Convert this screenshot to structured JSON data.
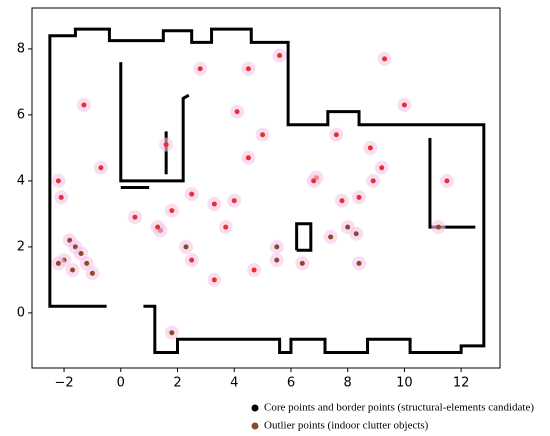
{
  "chart_data": {
    "type": "scatter",
    "xlim": [
      -3.13,
      13.37
    ],
    "ylim": [
      -1.67,
      9.24
    ],
    "xticks": [
      {
        "value": -2,
        "label": "−2"
      },
      0,
      2,
      4,
      6,
      8,
      10,
      12
    ],
    "yticks": [
      0,
      2,
      4,
      6,
      8
    ],
    "series": [
      {
        "name": "Core points and border points (structural-elements candidate)",
        "type": "line",
        "color": "#000000",
        "x": [
          -0.5,
          -2.5,
          -2.5,
          -1.6,
          -1.6,
          -0.4,
          -0.4,
          1.5,
          1.5,
          2.5,
          2.5,
          3.2,
          3.2,
          4.6,
          4.6,
          5.9,
          5.9,
          7.3,
          7.3,
          8.4,
          8.4,
          12.8,
          12.8,
          12.0,
          12.0,
          10.2,
          10.2,
          8.7,
          8.7,
          7.2,
          7.2,
          6.0,
          6.0,
          5.6,
          5.6,
          2.0,
          2.0,
          1.2,
          1.2,
          0.8,
          null,
          0.0,
          0.0,
          2.2,
          2.2,
          2.4,
          null,
          1.6,
          1.6,
          null,
          0.0,
          1.0,
          null,
          6.2,
          6.7,
          6.7,
          6.2,
          6.2,
          null,
          10.9,
          10.9,
          12.5
        ],
        "y": [
          0.2,
          0.2,
          8.4,
          8.4,
          8.6,
          8.6,
          8.25,
          8.25,
          8.55,
          8.55,
          8.2,
          8.2,
          8.6,
          8.6,
          8.2,
          8.2,
          5.7,
          5.7,
          6.1,
          6.1,
          5.7,
          5.7,
          -1.0,
          -1.0,
          -1.2,
          -1.2,
          -0.8,
          -0.8,
          -1.2,
          -1.2,
          -0.8,
          -0.8,
          -1.2,
          -1.2,
          -0.8,
          -0.8,
          -1.2,
          -1.2,
          0.2,
          0.2,
          null,
          7.6,
          4.0,
          4.0,
          6.5,
          6.6,
          null,
          5.5,
          4.2,
          null,
          3.8,
          3.8,
          null,
          1.9,
          1.9,
          2.7,
          2.7,
          1.9,
          null,
          5.3,
          2.6,
          2.6
        ]
      },
      {
        "name": "Outlier points (indoor clutter objects)",
        "type": "scatter",
        "color": "#8b4a2b",
        "x": [
          -1.8,
          -1.6,
          -1.4,
          -1.2,
          -1.0,
          -2.0,
          -1.7,
          -2.2,
          1.4,
          2.3,
          5.5,
          5.5,
          7.4,
          8.0,
          8.3,
          8.4,
          11.2,
          1.8,
          6.4,
          -2.2,
          -2.1,
          -0.7,
          -1.3,
          0.5,
          1.3,
          1.8,
          2.5,
          3.3,
          4.0,
          4.1,
          3.7,
          2.5,
          4.5,
          5.0,
          5.6,
          6.9,
          7.8,
          7.6,
          9.2,
          8.9,
          10.0,
          9.3,
          8.8,
          11.5,
          2.8,
          4.5,
          1.6,
          6.8,
          8.4,
          4.7,
          3.3
        ],
        "y": [
          2.2,
          2.0,
          1.8,
          1.5,
          1.2,
          1.6,
          1.3,
          1.5,
          2.5,
          2.0,
          2.0,
          1.6,
          2.3,
          2.6,
          2.4,
          1.5,
          2.6,
          -0.6,
          1.5,
          4.0,
          3.5,
          4.4,
          6.3,
          2.9,
          2.6,
          3.1,
          3.6,
          3.3,
          3.4,
          6.1,
          2.6,
          1.6,
          4.7,
          5.4,
          7.8,
          4.1,
          3.4,
          5.4,
          4.4,
          4.0,
          6.3,
          7.7,
          5.0,
          4.0,
          7.4,
          7.4,
          5.1,
          4.0,
          3.5,
          1.3,
          1.0
        ],
        "colors": [
          "#8b4a2b",
          "#8b4a2b",
          "#8b4a2b",
          "#8b4a2b",
          "#8b4a2b",
          "#8b4a2b",
          "#8b4a2b",
          "#8b4a2b",
          "#8b4a2b",
          "#8b4a2b",
          "#8b4a2b",
          "#8b4a2b",
          "#8b4a2b",
          "#8b4a2b",
          "#8b4a2b",
          "#8b4a2b",
          "#8b4a2b",
          "#8b4a2b",
          "#8b4a2b",
          "#e8302f",
          "#e8302f",
          "#e8302f",
          "#e8302f",
          "#e8302f",
          "#e8302f",
          "#e8302f",
          "#e8302f",
          "#e8302f",
          "#e8302f",
          "#e8302f",
          "#e8302f",
          "#e8302f",
          "#e8302f",
          "#e8302f",
          "#e8302f",
          "#e8302f",
          "#e8302f",
          "#e8302f",
          "#e8302f",
          "#e8302f",
          "#e8302f",
          "#e8302f",
          "#e8302f",
          "#e8302f",
          "#e8302f",
          "#e8302f",
          "#e8302f",
          "#e8302f",
          "#e8302f",
          "#e8302f",
          "#e8302f"
        ]
      }
    ]
  }
}
